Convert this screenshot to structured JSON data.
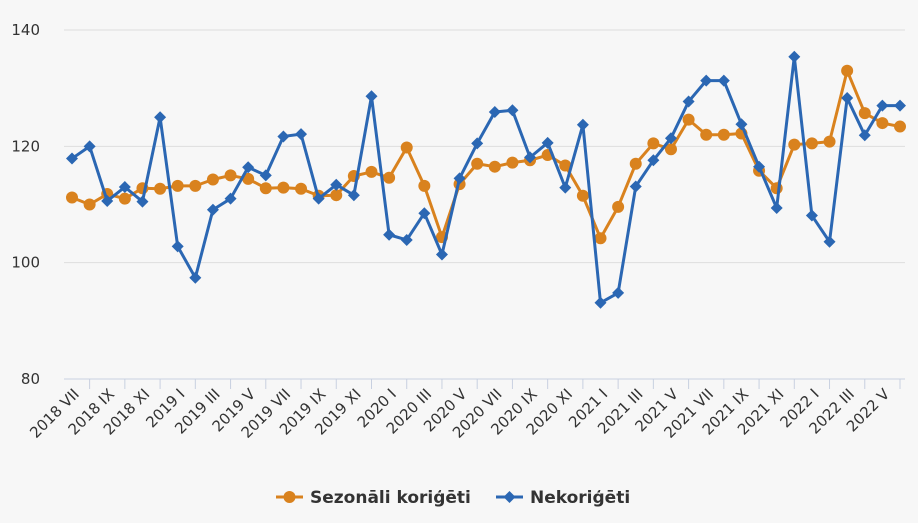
{
  "chart_data": {
    "type": "line",
    "ylim": [
      80,
      140
    ],
    "yticks": [
      80,
      100,
      120,
      140
    ],
    "grid": true,
    "legend_position": "bottom",
    "colors": {
      "adjusted": "#d9821e",
      "unadjusted": "#2b67b3",
      "grid": "#dedede",
      "axis": "#c8d0e0"
    },
    "x": [
      "2018 VII",
      "2018 VIII",
      "2018 IX",
      "2018 X",
      "2018 XI",
      "2018 XII",
      "2019 I",
      "2019 II",
      "2019 III",
      "2019 IV",
      "2019 V",
      "2019 VI",
      "2019 VII",
      "2019 VIII",
      "2019 IX",
      "2019 X",
      "2019 XI",
      "2019 XII",
      "2020 I",
      "2020 II",
      "2020 III",
      "2020 IV",
      "2020 V",
      "2020 VI",
      "2020 VII",
      "2020 VIII",
      "2020 IX",
      "2020 X",
      "2020 XI",
      "2020 XII",
      "2021 I",
      "2021 II",
      "2021 III",
      "2021 IV",
      "2021 V",
      "2021 VI",
      "2021 VII",
      "2021 VIII",
      "2021 IX",
      "2021 X",
      "2021 XI",
      "2021 XII",
      "2022 I",
      "2022 II",
      "2022 III",
      "2022 IV",
      "2022 V",
      "2022 VI"
    ],
    "tick_labels": [
      "2018 VII",
      "2018 IX",
      "2018 XI",
      "2019 I",
      "2019 III",
      "2019 V",
      "2019 VII",
      "2019 IX",
      "2019 XI",
      "2020 I",
      "2020 III",
      "2020 V",
      "2020 VII",
      "2020 IX",
      "2020 XI",
      "2021 I",
      "2021 III",
      "2021 V",
      "2021 VII",
      "2021 IX",
      "2021 XI",
      "2022 I",
      "2022 III",
      "2022 V"
    ],
    "series": [
      {
        "name": "Sezonāli koriģēti",
        "color": "#d9821e",
        "marker": "circle",
        "values": [
          111.2,
          110.0,
          111.8,
          111.0,
          112.8,
          112.7,
          113.2,
          113.2,
          114.3,
          115.0,
          114.4,
          112.8,
          112.9,
          112.7,
          111.5,
          111.6,
          114.9,
          115.6,
          114.6,
          119.8,
          113.2,
          104.4,
          113.5,
          117.0,
          116.5,
          117.2,
          117.6,
          118.5,
          116.7,
          111.5,
          104.2,
          109.6,
          117.0,
          120.5,
          119.5,
          124.6,
          122.0,
          122.0,
          122.2,
          115.8,
          112.8,
          120.3,
          120.5,
          120.8,
          133.0,
          125.7,
          124.0,
          123.4
        ]
      },
      {
        "name": "Nekoriģēti",
        "color": "#2b67b3",
        "marker": "diamond",
        "values": [
          117.9,
          120.0,
          110.6,
          113.0,
          110.5,
          125.0,
          102.8,
          97.4,
          109.1,
          111.0,
          116.4,
          115.0,
          121.7,
          122.1,
          111.0,
          113.4,
          111.6,
          128.6,
          104.8,
          103.9,
          108.5,
          101.4,
          114.5,
          120.5,
          125.9,
          126.2,
          118.1,
          120.6,
          112.9,
          123.7,
          93.1,
          94.8,
          113.1,
          117.6,
          121.4,
          127.7,
          131.3,
          131.3,
          123.8,
          116.5,
          109.4,
          135.4,
          108.1,
          103.6,
          128.3,
          121.9,
          127.0,
          127.0
        ]
      }
    ]
  }
}
